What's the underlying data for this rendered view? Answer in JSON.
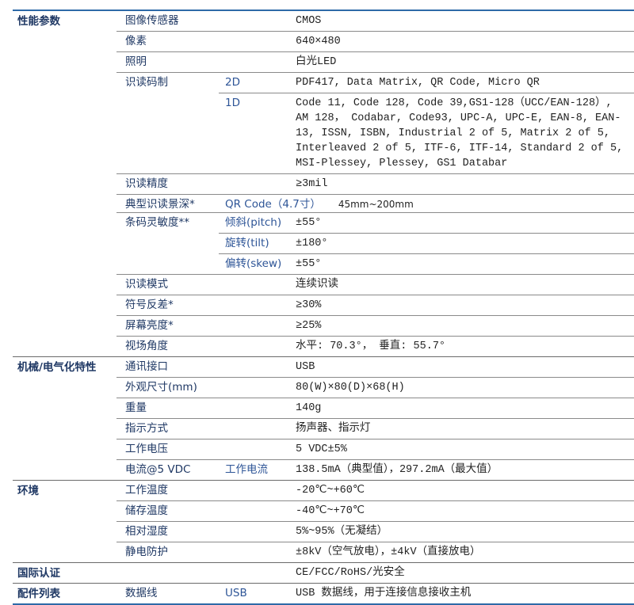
{
  "sections": [
    {
      "category": "性能参数",
      "groups": [
        {
          "label": "图像传感器",
          "rows": [
            {
              "sub": "",
              "value": "CMOS"
            }
          ]
        },
        {
          "label": "像素",
          "rows": [
            {
              "sub": "",
              "value": "640×480"
            }
          ]
        },
        {
          "label": "照明",
          "rows": [
            {
              "sub": "",
              "value": "白光LED"
            }
          ]
        },
        {
          "label": "识读码制",
          "rows": [
            {
              "sub": "2D",
              "value": "PDF417, Data Matrix, QR Code, Micro QR"
            },
            {
              "sub": "1D",
              "value": "Code 11, Code 128, Code 39,GS1-128（UCC/EAN-128）, AM 128， Codabar, Code93, UPC-A, UPC-E, EAN-8, EAN-13, ISSN, ISBN, Industrial 2 of 5, Matrix 2 of 5, Interleaved 2 of 5, ITF-6, ITF-14, Standard 2 of 5, MSI-Plessey, Plessey, GS1 Databar"
            }
          ]
        },
        {
          "label": "识读精度",
          "rows": [
            {
              "sub": "",
              "value": "≥3mil"
            }
          ]
        },
        {
          "label": "典型识读景深*",
          "rows": [
            {
              "sub": "QR Code（4.7寸）",
              "value": "45mm~200mm",
              "inline": true
            }
          ]
        },
        {
          "label": "条码灵敏度**",
          "rows": [
            {
              "sub": "倾斜(pitch)",
              "value": "±55°"
            },
            {
              "sub": "旋转(tilt)",
              "value": "±180°"
            },
            {
              "sub": "偏转(skew)",
              "value": "±55°"
            }
          ]
        },
        {
          "label": "识读模式",
          "rows": [
            {
              "sub": "",
              "value": "连续识读"
            }
          ]
        },
        {
          "label": "符号反差*",
          "rows": [
            {
              "sub": "",
              "value": "≥30%"
            }
          ]
        },
        {
          "label": "屏幕亮度*",
          "rows": [
            {
              "sub": "",
              "value": "≥25%"
            }
          ]
        },
        {
          "label": "视场角度",
          "rows": [
            {
              "sub": "",
              "value": "水平: 70.3°，  垂直: 55.7°"
            }
          ]
        }
      ]
    },
    {
      "category": "机械/电气化特性",
      "groups": [
        {
          "label": "通讯接口",
          "rows": [
            {
              "sub": "",
              "value": "USB"
            }
          ]
        },
        {
          "label": "外观尺寸(mm)",
          "rows": [
            {
              "sub": "",
              "value": "80(W)×80(D)×68(H)"
            }
          ]
        },
        {
          "label": "重量",
          "rows": [
            {
              "sub": "",
              "value": "140g"
            }
          ]
        },
        {
          "label": "指示方式",
          "rows": [
            {
              "sub": "",
              "value": "扬声器、指示灯"
            }
          ]
        },
        {
          "label": "工作电压",
          "rows": [
            {
              "sub": "",
              "value": "5 VDC±5%"
            }
          ]
        },
        {
          "label": "电流@5 VDC",
          "rows": [
            {
              "sub": "工作电流",
              "value": "138.5mA（典型值），297.2mA（最大值）"
            }
          ]
        }
      ]
    },
    {
      "category": "环境",
      "groups": [
        {
          "label": "工作温度",
          "rows": [
            {
              "sub": "",
              "value": "-20℃~+60℃"
            }
          ]
        },
        {
          "label": "储存温度",
          "rows": [
            {
              "sub": "",
              "value": "-40℃~+70℃"
            }
          ]
        },
        {
          "label": "相对湿度",
          "rows": [
            {
              "sub": "",
              "value": "5%~95%（无凝结）"
            }
          ]
        },
        {
          "label": "静电防护",
          "rows": [
            {
              "sub": "",
              "value": "±8kV（空气放电），±4kV（直接放电）"
            }
          ]
        }
      ]
    },
    {
      "category": "国际认证",
      "groups": [
        {
          "label": "",
          "rows": [
            {
              "sub": "",
              "value": "CE/FCC/RoHS/光安全"
            }
          ]
        }
      ]
    },
    {
      "category": "配件列表",
      "groups": [
        {
          "label": "数据线",
          "rows": [
            {
              "sub": "USB",
              "value": "USB 数据线，用于连接信息接收主机"
            }
          ]
        }
      ]
    }
  ],
  "colors": {
    "label": "#1f3864",
    "sub": "#2e5597",
    "rule": "#2e6aa8"
  }
}
